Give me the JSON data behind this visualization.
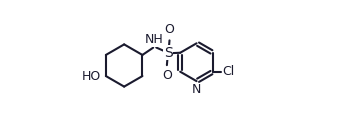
{
  "bg_color": "#ffffff",
  "bond_color": "#1a1a2e",
  "line_width": 1.5,
  "font_size": 9,
  "fig_width": 3.4,
  "fig_height": 1.31,
  "dpi": 100,
  "xlim": [
    -0.05,
    1.05
  ],
  "ylim": [
    0.05,
    0.95
  ]
}
